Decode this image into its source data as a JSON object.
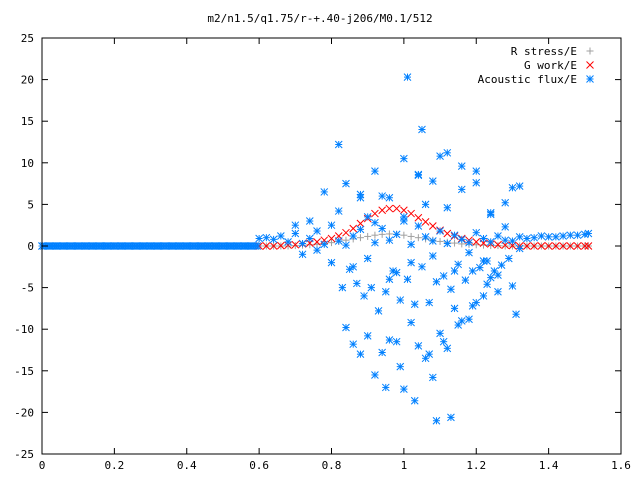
{
  "chart_data": {
    "type": "scatter",
    "title": "m2/n1.5/q1.75/r-+.40-j206/M0.1/512",
    "xlabel": "",
    "ylabel": "",
    "xlim": [
      0,
      1.6
    ],
    "ylim": [
      -25,
      25
    ],
    "xticks": [
      "0",
      "0.2",
      "0.4",
      "0.6",
      "0.8",
      "1",
      "1.2",
      "1.4",
      "1.6"
    ],
    "yticks": [
      "25",
      "20",
      "15",
      "10",
      "5",
      "0",
      "-5",
      "-10",
      "-15",
      "-20",
      "-25"
    ],
    "grid": false,
    "legend_position": "top-right",
    "series": [
      {
        "name": "R stress/E",
        "marker": "plus",
        "color": "#a0a0a0",
        "x": [
          0.6,
          0.62,
          0.64,
          0.66,
          0.68,
          0.7,
          0.72,
          0.74,
          0.76,
          0.78,
          0.8,
          0.82,
          0.84,
          0.86,
          0.88,
          0.9,
          0.92,
          0.94,
          0.96,
          0.98,
          1.0,
          1.02,
          1.04,
          1.06,
          1.08,
          1.1,
          1.12,
          1.14,
          1.16,
          1.18,
          1.2,
          1.22,
          1.24,
          1.26,
          1.28,
          1.3,
          1.32,
          1.34,
          1.36,
          1.38,
          1.4,
          1.42,
          1.44,
          1.46,
          1.48,
          1.5,
          1.51
        ],
        "y": [
          0,
          0,
          0,
          0,
          0,
          0.05,
          0.1,
          0.15,
          0.2,
          0.3,
          0.4,
          0.55,
          0.7,
          0.85,
          1.0,
          1.15,
          1.3,
          1.4,
          1.45,
          1.4,
          1.3,
          1.15,
          1.0,
          0.85,
          0.7,
          0.55,
          0.45,
          0.35,
          0.25,
          0.2,
          0.15,
          0.1,
          0.05,
          0.05,
          0,
          0,
          0,
          0,
          0,
          0,
          0,
          0,
          0,
          0,
          0,
          0,
          0
        ]
      },
      {
        "name": "G work/E",
        "marker": "cross",
        "color": "#ff0000",
        "x": [
          0.6,
          0.62,
          0.64,
          0.66,
          0.68,
          0.7,
          0.72,
          0.74,
          0.76,
          0.78,
          0.8,
          0.82,
          0.84,
          0.86,
          0.88,
          0.9,
          0.92,
          0.94,
          0.96,
          0.98,
          1.0,
          1.02,
          1.04,
          1.06,
          1.08,
          1.1,
          1.12,
          1.14,
          1.16,
          1.18,
          1.2,
          1.22,
          1.24,
          1.26,
          1.28,
          1.3,
          1.32,
          1.34,
          1.36,
          1.38,
          1.4,
          1.42,
          1.44,
          1.46,
          1.48,
          1.5,
          1.51
        ],
        "y": [
          0,
          0,
          0,
          0.05,
          0.1,
          0.15,
          0.25,
          0.35,
          0.5,
          0.7,
          0.9,
          1.2,
          1.6,
          2.1,
          2.7,
          3.3,
          3.9,
          4.3,
          4.5,
          4.5,
          4.3,
          3.9,
          3.4,
          2.9,
          2.4,
          1.9,
          1.5,
          1.2,
          0.9,
          0.7,
          0.5,
          0.35,
          0.25,
          0.15,
          0.1,
          0.05,
          0,
          0,
          0,
          0,
          0,
          0,
          0,
          0,
          0,
          0,
          0
        ]
      },
      {
        "name": "Acoustic flux/E",
        "marker": "star",
        "color": "#0080ff",
        "x": [
          0.0,
          0.02,
          0.04,
          0.06,
          0.08,
          0.1,
          0.12,
          0.14,
          0.16,
          0.18,
          0.2,
          0.22,
          0.24,
          0.26,
          0.28,
          0.3,
          0.32,
          0.34,
          0.36,
          0.38,
          0.4,
          0.42,
          0.44,
          0.46,
          0.48,
          0.5,
          0.52,
          0.54,
          0.56,
          0.58,
          0.6,
          0.62,
          0.64,
          0.66,
          0.68,
          0.7,
          0.72,
          0.74,
          0.76,
          0.78,
          0.8,
          0.82,
          0.84,
          0.86,
          0.88,
          0.9,
          0.92,
          0.94,
          0.96,
          0.98,
          1.0,
          1.02,
          1.04,
          1.06,
          1.08,
          1.1,
          1.12,
          1.14,
          1.16,
          1.18,
          1.2,
          1.22,
          1.24,
          1.26,
          1.28,
          1.3,
          1.32,
          1.34,
          1.36,
          1.38,
          1.4,
          1.42,
          1.44,
          1.46,
          1.48,
          1.5,
          1.51,
          0.7,
          0.72,
          0.74,
          0.76,
          0.78,
          0.8,
          0.82,
          0.84,
          0.86,
          0.88,
          0.9,
          0.92,
          0.94,
          0.96,
          0.98,
          1.0,
          1.02,
          1.04,
          1.06,
          1.08,
          1.1,
          1.12,
          1.14,
          1.16,
          1.18,
          1.2,
          1.22,
          1.24,
          1.26,
          1.28,
          1.3,
          1.32,
          0.83,
          0.85,
          0.87,
          0.89,
          0.91,
          0.93,
          0.95,
          0.97,
          0.99,
          1.01,
          1.03,
          1.05,
          1.07,
          1.09,
          1.11,
          1.13,
          1.15,
          1.17,
          1.19,
          1.21,
          1.23,
          1.25,
          1.27,
          1.29,
          1.31,
          0.82,
          0.84,
          0.88,
          0.92,
          0.96,
          1.0,
          1.04,
          1.08,
          1.12,
          1.16,
          1.2,
          1.24,
          1.28,
          1.32,
          0.86,
          0.9,
          0.94,
          0.98,
          1.02,
          1.06,
          1.1,
          1.14,
          1.18,
          1.22,
          1.26,
          1.3,
          0.88,
          0.92,
          0.96,
          1.0,
          1.04,
          1.08,
          1.12,
          1.16,
          1.2,
          1.24,
          0.95,
          0.99,
          1.03,
          1.07,
          1.11,
          1.15,
          1.19,
          1.23,
          1.01,
          1.05,
          1.09,
          1.13
        ],
        "y": [
          0,
          0,
          0,
          0,
          0,
          0,
          0,
          0,
          0,
          0,
          0,
          0,
          0,
          0,
          0,
          0,
          0,
          0,
          0,
          0,
          0,
          0,
          0,
          0,
          0,
          0,
          0,
          0,
          0,
          0,
          0.9,
          1.0,
          0.8,
          1.2,
          0.5,
          1.5,
          0.3,
          0.9,
          1.8,
          0.2,
          2.5,
          0.6,
          0.1,
          1.2,
          2.0,
          3.5,
          0.4,
          2.1,
          0.7,
          1.4,
          3.0,
          0.2,
          2.4,
          1.1,
          0.6,
          1.8,
          0.3,
          1.3,
          0.8,
          0.4,
          1.6,
          0.9,
          0.5,
          1.2,
          0.7,
          0.6,
          1.1,
          0.9,
          1.0,
          1.2,
          1.1,
          1.1,
          1.2,
          1.3,
          1.3,
          1.4,
          1.5,
          2.5,
          -1.0,
          3.0,
          -0.5,
          6.5,
          -2.0,
          4.2,
          7.5,
          -2.5,
          5.8,
          -1.5,
          2.8,
          6.0,
          -4.0,
          -3.2,
          3.5,
          -2.0,
          8.5,
          5.0,
          -1.2,
          10.8,
          4.6,
          -3.0,
          6.8,
          -0.8,
          9.0,
          -1.8,
          4.0,
          -3.5,
          2.3,
          7.0,
          -0.3,
          -5.0,
          -2.8,
          -4.5,
          -6.0,
          -5.0,
          -7.8,
          -5.5,
          -3.0,
          -6.5,
          -4.0,
          -7.0,
          -2.5,
          -6.8,
          -4.3,
          -3.6,
          -5.2,
          -2.2,
          -4.1,
          -3.0,
          -2.6,
          -1.8,
          -3.0,
          -2.3,
          -1.5,
          -8.2,
          12.2,
          -9.8,
          6.2,
          9.0,
          5.8,
          10.5,
          8.6,
          7.8,
          11.2,
          9.6,
          7.6,
          3.8,
          5.2,
          7.2,
          -11.8,
          -10.8,
          -12.8,
          -11.5,
          -9.2,
          -13.5,
          -10.5,
          -7.5,
          -8.8,
          -6.0,
          -5.5,
          -4.8,
          -13.0,
          -15.5,
          -11.3,
          -17.2,
          -12.0,
          -15.8,
          -12.3,
          -9.0,
          -6.8,
          -3.8,
          -17.0,
          -14.5,
          -18.6,
          -13.0,
          -11.5,
          -9.5,
          -7.2,
          -4.6,
          20.3,
          14.0,
          -21.0,
          -20.6
        ]
      }
    ]
  }
}
